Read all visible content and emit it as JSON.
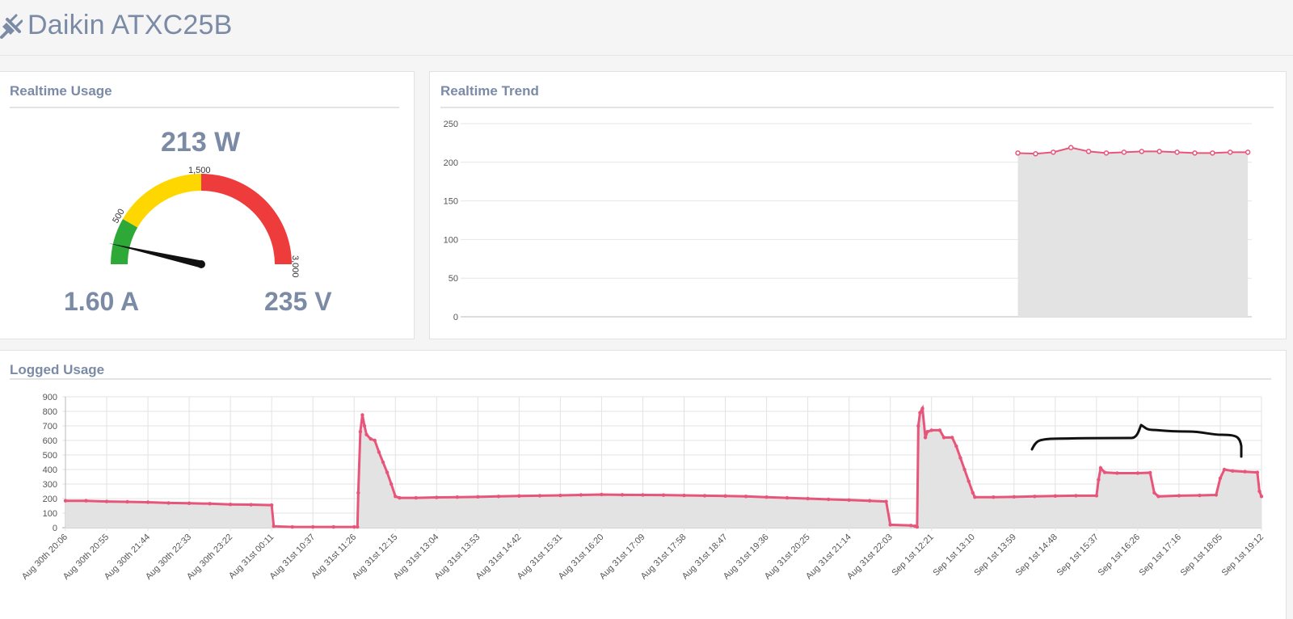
{
  "header": {
    "title": "Daikin ATXC25B",
    "icon": "plug-icon"
  },
  "realtime_usage": {
    "title": "Realtime Usage",
    "power": "213 W",
    "current": "1.60 A",
    "voltage": "235 V",
    "gauge": {
      "min": 0,
      "max": 3000,
      "value": 213,
      "bands": [
        {
          "from": 0,
          "to": 500,
          "color": "#2ea836"
        },
        {
          "from": 500,
          "to": 1500,
          "color": "#ffd700"
        },
        {
          "from": 1500,
          "to": 3000,
          "color": "#ee3b3b"
        }
      ],
      "tick_labels": [
        "500",
        "1,500",
        "3,000"
      ]
    }
  },
  "realtime_trend": {
    "title": "Realtime Trend",
    "chart_data": {
      "type": "area",
      "y_ticks": [
        "250",
        "200",
        "150",
        "100",
        "50",
        "0"
      ],
      "ylim": [
        0,
        250
      ],
      "line_color": "#e8557a",
      "fill_color": "#e3e3e3",
      "xlim": [
        0,
        40
      ],
      "x": [
        28.1,
        29.0,
        29.9,
        30.8,
        31.7,
        32.6,
        33.5,
        34.4,
        35.3,
        36.2,
        37.1,
        38.0,
        38.9,
        39.8
      ],
      "values": [
        212,
        211,
        213,
        219,
        214,
        212,
        213,
        214,
        214,
        213,
        212,
        212,
        213,
        213
      ]
    }
  },
  "logged_usage": {
    "title": "Logged Usage",
    "chart_data": {
      "type": "area",
      "line_color": "#e8557a",
      "fill_color": "#e3e3e3",
      "ylim": [
        0,
        900
      ],
      "y_ticks": [
        "900",
        "800",
        "700",
        "600",
        "500",
        "400",
        "300",
        "200",
        "100",
        "0"
      ],
      "x_labels": [
        "Aug 30th 20:06",
        "Aug 30th 20:55",
        "Aug 30th 21:44",
        "Aug 30th 22:33",
        "Aug 30th 23:22",
        "Aug 31st 00:11",
        "Aug 31st 10:37",
        "Aug 31st 11:26",
        "Aug 31st 12:15",
        "Aug 31st 13:04",
        "Aug 31st 13:53",
        "Aug 31st 14:42",
        "Aug 31st 15:31",
        "Aug 31st 16:20",
        "Aug 31st 17:09",
        "Aug 31st 17:58",
        "Aug 31st 18:47",
        "Aug 31st 19:36",
        "Aug 31st 20:25",
        "Aug 31st 21:14",
        "Aug 31st 22:03",
        "Sep 1st 12:21",
        "Sep 1st 13:10",
        "Sep 1st 13:59",
        "Sep 1st 14:48",
        "Sep 1st 15:37",
        "Sep 1st 16:26",
        "Sep 1st 17:16",
        "Sep 1st 18:05",
        "Sep 1st 19:12"
      ],
      "xlim": [
        0,
        29
      ],
      "points": [
        [
          0.0,
          185
        ],
        [
          0.5,
          185
        ],
        [
          1.0,
          180
        ],
        [
          1.5,
          178
        ],
        [
          2.0,
          175
        ],
        [
          2.5,
          170
        ],
        [
          3.0,
          168
        ],
        [
          3.5,
          165
        ],
        [
          4.0,
          160
        ],
        [
          4.5,
          158
        ],
        [
          5.0,
          155
        ],
        [
          5.05,
          10
        ],
        [
          5.5,
          5
        ],
        [
          6.0,
          5
        ],
        [
          6.5,
          5
        ],
        [
          7.0,
          5
        ],
        [
          7.08,
          5
        ],
        [
          7.1,
          240
        ],
        [
          7.15,
          660
        ],
        [
          7.2,
          775
        ],
        [
          7.25,
          700
        ],
        [
          7.3,
          640
        ],
        [
          7.4,
          610
        ],
        [
          7.5,
          600
        ],
        [
          7.6,
          520
        ],
        [
          7.7,
          450
        ],
        [
          7.8,
          380
        ],
        [
          7.9,
          300
        ],
        [
          8.0,
          215
        ],
        [
          8.1,
          205
        ],
        [
          8.5,
          205
        ],
        [
          9.0,
          208
        ],
        [
          9.5,
          210
        ],
        [
          10.0,
          212
        ],
        [
          10.5,
          215
        ],
        [
          11.0,
          218
        ],
        [
          11.5,
          220
        ],
        [
          12.0,
          222
        ],
        [
          12.5,
          225
        ],
        [
          13.0,
          228
        ],
        [
          13.5,
          226
        ],
        [
          14.0,
          225
        ],
        [
          14.5,
          224
        ],
        [
          15.0,
          222
        ],
        [
          15.5,
          220
        ],
        [
          16.0,
          218
        ],
        [
          16.5,
          215
        ],
        [
          17.0,
          210
        ],
        [
          17.5,
          205
        ],
        [
          18.0,
          200
        ],
        [
          18.5,
          195
        ],
        [
          19.0,
          190
        ],
        [
          19.5,
          185
        ],
        [
          19.9,
          180
        ],
        [
          20.0,
          20
        ],
        [
          20.5,
          15
        ],
        [
          20.6,
          10
        ],
        [
          20.65,
          5
        ],
        [
          20.68,
          700
        ],
        [
          20.72,
          790
        ],
        [
          20.78,
          820
        ],
        [
          20.85,
          620
        ],
        [
          20.9,
          660
        ],
        [
          21.0,
          670
        ],
        [
          21.2,
          670
        ],
        [
          21.3,
          620
        ],
        [
          21.5,
          620
        ],
        [
          21.6,
          560
        ],
        [
          21.7,
          480
        ],
        [
          21.8,
          400
        ],
        [
          21.9,
          320
        ],
        [
          22.0,
          240
        ],
        [
          22.05,
          210
        ],
        [
          22.5,
          210
        ],
        [
          23.0,
          212
        ],
        [
          23.5,
          215
        ],
        [
          24.0,
          218
        ],
        [
          24.5,
          220
        ],
        [
          25.0,
          220
        ],
        [
          25.05,
          330
        ],
        [
          25.1,
          410
        ],
        [
          25.2,
          380
        ],
        [
          25.5,
          375
        ],
        [
          26.0,
          375
        ],
        [
          26.3,
          378
        ],
        [
          26.4,
          240
        ],
        [
          26.5,
          215
        ],
        [
          27.0,
          220
        ],
        [
          27.5,
          222
        ],
        [
          27.9,
          225
        ],
        [
          28.0,
          340
        ],
        [
          28.1,
          400
        ],
        [
          28.3,
          390
        ],
        [
          28.6,
          385
        ],
        [
          28.9,
          380
        ],
        [
          28.95,
          250
        ],
        [
          29.0,
          215
        ]
      ]
    }
  }
}
